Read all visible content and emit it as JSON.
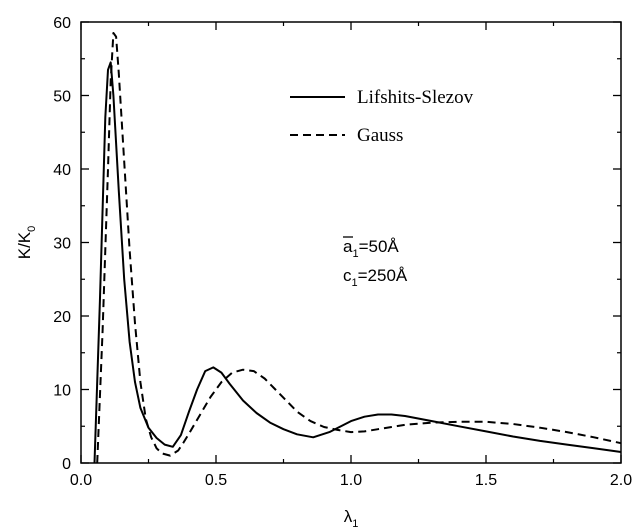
{
  "chart_data": {
    "type": "line",
    "xlabel": "λ",
    "xlabel_sub": "1",
    "ylabel": "K/K",
    "ylabel_sub": "0",
    "xlim": [
      0,
      2.0
    ],
    "ylim": [
      0,
      60
    ],
    "xticks": [
      "0.0",
      "0.5",
      "1.0",
      "1.5",
      "2.0"
    ],
    "yticks": [
      "0",
      "10",
      "20",
      "30",
      "40",
      "50",
      "60"
    ],
    "legend_placement": "top-right",
    "annotations": [
      {
        "text": "a",
        "sub": "1",
        "rest": "=50Å",
        "overbar": true
      },
      {
        "text": "c",
        "sub": "1",
        "rest": "=250Å",
        "overbar": false
      }
    ],
    "series": [
      {
        "name": "Lifshits-Slezov",
        "style": "solid",
        "x": [
          0.05,
          0.07,
          0.09,
          0.1,
          0.11,
          0.12,
          0.14,
          0.16,
          0.18,
          0.2,
          0.22,
          0.25,
          0.28,
          0.31,
          0.34,
          0.37,
          0.4,
          0.43,
          0.46,
          0.49,
          0.52,
          0.55,
          0.6,
          0.65,
          0.7,
          0.75,
          0.8,
          0.86,
          0.92,
          1.0,
          1.05,
          1.1,
          1.15,
          1.2,
          1.3,
          1.4,
          1.5,
          1.6,
          1.7,
          1.8,
          1.9,
          2.0
        ],
        "y": [
          0.0,
          22.0,
          47.0,
          53.5,
          54.5,
          50.0,
          37.0,
          25.0,
          16.5,
          11.0,
          7.5,
          4.8,
          3.4,
          2.5,
          2.2,
          3.8,
          7.0,
          10.0,
          12.5,
          13.0,
          12.3,
          10.8,
          8.5,
          6.8,
          5.5,
          4.6,
          3.9,
          3.5,
          4.2,
          5.7,
          6.3,
          6.6,
          6.6,
          6.4,
          5.7,
          5.0,
          4.3,
          3.6,
          3.0,
          2.5,
          2.0,
          1.5
        ]
      },
      {
        "name": "Gauss",
        "style": "dashed",
        "x": [
          0.06,
          0.08,
          0.1,
          0.11,
          0.12,
          0.13,
          0.14,
          0.16,
          0.18,
          0.2,
          0.22,
          0.24,
          0.26,
          0.28,
          0.3,
          0.33,
          0.36,
          0.38,
          0.4,
          0.44,
          0.48,
          0.52,
          0.56,
          0.6,
          0.64,
          0.68,
          0.72,
          0.76,
          0.8,
          0.85,
          0.9,
          0.95,
          1.0,
          1.05,
          1.1,
          1.15,
          1.2,
          1.3,
          1.4,
          1.5,
          1.6,
          1.7,
          1.8,
          1.9,
          2.0
        ],
        "y": [
          0.0,
          18.0,
          40.0,
          52.0,
          58.5,
          58.0,
          53.0,
          41.0,
          29.0,
          19.0,
          11.0,
          6.0,
          3.5,
          2.0,
          1.3,
          1.0,
          1.7,
          2.8,
          4.0,
          6.5,
          9.0,
          11.0,
          12.3,
          12.7,
          12.5,
          11.5,
          10.0,
          8.5,
          7.0,
          5.7,
          4.9,
          4.5,
          4.2,
          4.3,
          4.6,
          4.9,
          5.2,
          5.5,
          5.6,
          5.6,
          5.3,
          4.8,
          4.2,
          3.5,
          2.7
        ]
      }
    ]
  }
}
